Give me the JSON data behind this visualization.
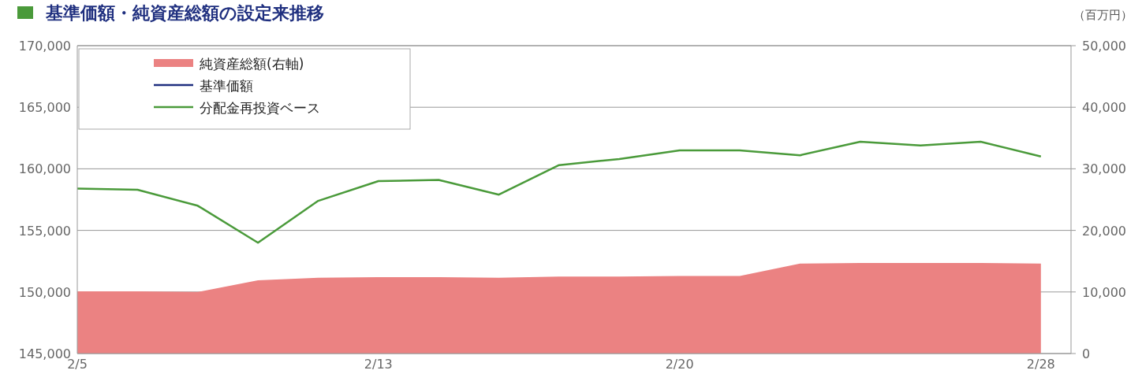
{
  "chart_data": {
    "type": "line",
    "title": "基準価額・純資産総額の設定来推移",
    "y2label": "（百万円）",
    "categories": [
      "2/5",
      null,
      null,
      null,
      null,
      "2/13",
      null,
      null,
      null,
      null,
      "2/20",
      null,
      null,
      null,
      null,
      null,
      "2/28"
    ],
    "series": [
      {
        "name": "純資産総額(右軸)",
        "type": "area",
        "axis": "y2",
        "color": "#eb8282",
        "values": [
          10100,
          10100,
          10000,
          11900,
          12300,
          12400,
          12400,
          12300,
          12500,
          12500,
          12600,
          12600,
          14600,
          14700,
          14700,
          14700,
          14600
        ]
      },
      {
        "name": "基準価額",
        "color": "#1f2f7f",
        "values": [
          null,
          null,
          null,
          null,
          null,
          null,
          null,
          null,
          null,
          null,
          null,
          null,
          null,
          null,
          null,
          null,
          null
        ]
      },
      {
        "name": "分配金再投資ベース",
        "color": "#4a9a3a",
        "values": [
          158400,
          158300,
          157000,
          154000,
          157400,
          159000,
          159100,
          157900,
          160300,
          160800,
          161500,
          161500,
          161100,
          162200,
          161900,
          162200,
          161000
        ]
      }
    ],
    "ylim": [
      145000,
      170000
    ],
    "yticks": [
      {
        "value": 145000,
        "label": "145,000"
      },
      {
        "value": 150000,
        "label": "150,000"
      },
      {
        "value": 155000,
        "label": "155,000"
      },
      {
        "value": 160000,
        "label": "160,000"
      },
      {
        "value": 165000,
        "label": "165,000"
      },
      {
        "value": 170000,
        "label": "170,000"
      }
    ],
    "y2lim": [
      0,
      50000
    ],
    "y2ticks": [
      0,
      {
        "value": 10000,
        "label": "10,000"
      },
      {
        "value": 20000,
        "label": "20,000"
      },
      {
        "value": 30000,
        "label": "30,000"
      },
      {
        "value": 40000,
        "label": "40,000"
      },
      {
        "value": 50000,
        "label": "50,000"
      }
    ],
    "grid": "y",
    "legend": "top left"
  }
}
